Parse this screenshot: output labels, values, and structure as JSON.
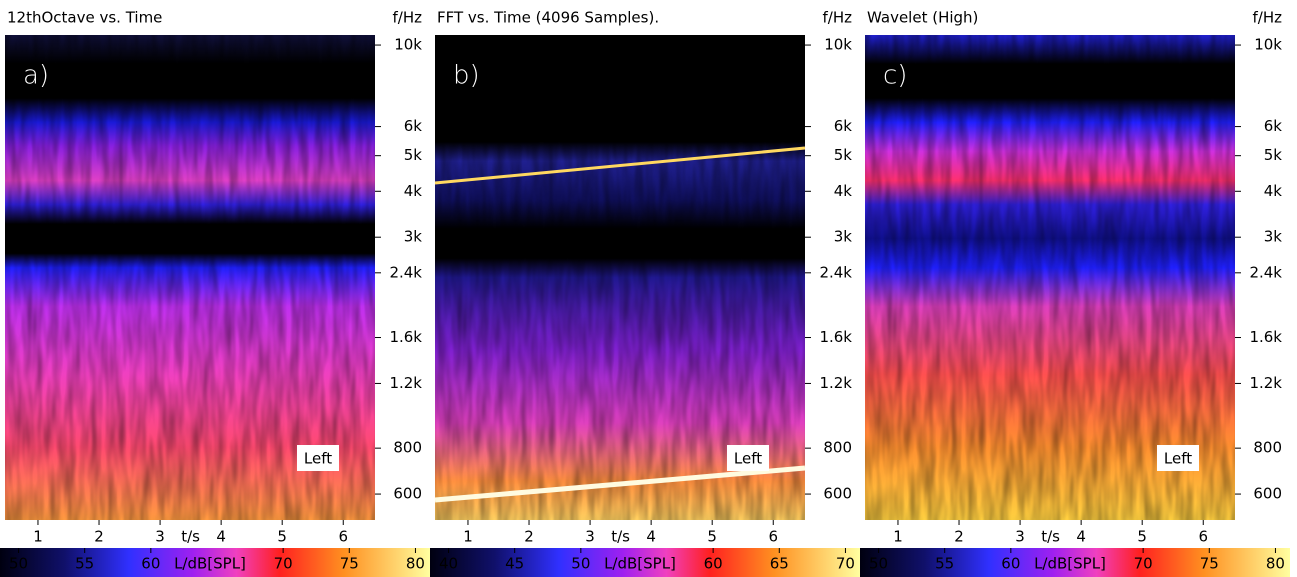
{
  "panels": [
    {
      "title": "12thOctave vs. Time",
      "tag": "a)",
      "freq_label": "f/Hz",
      "time_label": "t/s",
      "channel": "Left",
      "ylim": [
        510,
        10650
      ],
      "yticks": [
        {
          "value": 600,
          "label": "600"
        },
        {
          "value": 800,
          "label": "800"
        },
        {
          "value": 1200,
          "label": "1.2k"
        },
        {
          "value": 1600,
          "label": "1.6k"
        },
        {
          "value": 2400,
          "label": "2.4k"
        },
        {
          "value": 3000,
          "label": "3k"
        },
        {
          "value": 4000,
          "label": "4k"
        },
        {
          "value": 5000,
          "label": "5k"
        },
        {
          "value": 6000,
          "label": "6k"
        },
        {
          "value": 10000,
          "label": "10k"
        }
      ],
      "xlim": [
        0.46,
        6.52
      ],
      "xticks": [
        1,
        2,
        3,
        4,
        5,
        6
      ],
      "colorbar": {
        "label": "L/dB[SPL]",
        "lim": [
          48.6,
          81.1
        ],
        "ticks": [
          50,
          55,
          60,
          70,
          75,
          80
        ]
      }
    },
    {
      "title": "FFT vs. Time (4096 Samples).",
      "tag": "b)",
      "freq_label": "f/Hz",
      "time_label": "t/s",
      "channel": "Left",
      "ylim": [
        510,
        10650
      ],
      "yticks": [
        {
          "value": 600,
          "label": "600"
        },
        {
          "value": 800,
          "label": "800"
        },
        {
          "value": 1200,
          "label": "1.2k"
        },
        {
          "value": 1600,
          "label": "1.6k"
        },
        {
          "value": 2400,
          "label": "2.4k"
        },
        {
          "value": 3000,
          "label": "3k"
        },
        {
          "value": 4000,
          "label": "4k"
        },
        {
          "value": 5000,
          "label": "5k"
        },
        {
          "value": 6000,
          "label": "6k"
        },
        {
          "value": 10000,
          "label": "10k"
        }
      ],
      "xlim": [
        0.46,
        6.52
      ],
      "xticks": [
        1,
        2,
        3,
        4,
        5,
        6
      ],
      "colorbar": {
        "label": "L/dB[SPL]",
        "lim": [
          38.6,
          71.1
        ],
        "ticks": [
          40,
          45,
          50,
          60,
          65,
          70
        ]
      }
    },
    {
      "title": "Wavelet (High)",
      "tag": "c)",
      "freq_label": "f/Hz",
      "time_label": "t/s",
      "channel": "Left",
      "ylim": [
        510,
        10650
      ],
      "yticks": [
        {
          "value": 600,
          "label": "600"
        },
        {
          "value": 800,
          "label": "800"
        },
        {
          "value": 1200,
          "label": "1.2k"
        },
        {
          "value": 1600,
          "label": "1.6k"
        },
        {
          "value": 2400,
          "label": "2.4k"
        },
        {
          "value": 3000,
          "label": "3k"
        },
        {
          "value": 4000,
          "label": "4k"
        },
        {
          "value": 5000,
          "label": "5k"
        },
        {
          "value": 6000,
          "label": "6k"
        },
        {
          "value": 10000,
          "label": "10k"
        }
      ],
      "xlim": [
        0.46,
        6.52
      ],
      "xticks": [
        1,
        2,
        3,
        4,
        5,
        6
      ],
      "colorbar": {
        "label": "L/dB[SPL]",
        "lim": [
          48.6,
          81.1
        ],
        "ticks": [
          50,
          55,
          60,
          70,
          75,
          80
        ]
      }
    }
  ]
}
